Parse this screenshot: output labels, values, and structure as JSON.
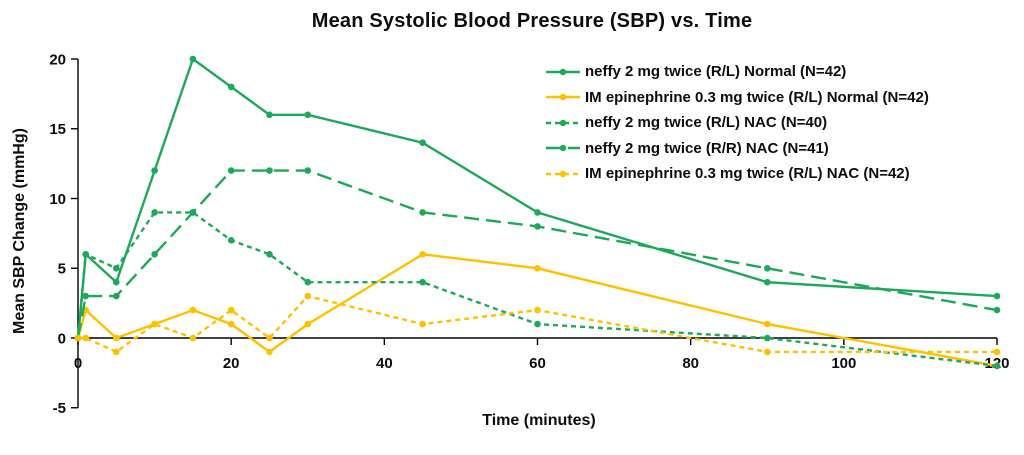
{
  "chart_data": {
    "type": "line",
    "title": "Mean Systolic Blood Pressure (SBP) vs. Time",
    "xlabel": "Time (minutes)",
    "ylabel": "Mean SBP Change (mmHg)",
    "xlim": [
      0,
      120
    ],
    "ylim": [
      -5,
      20
    ],
    "x_ticks": [
      0,
      20,
      40,
      60,
      80,
      100,
      120
    ],
    "y_ticks": [
      20,
      15,
      10,
      5,
      0,
      -5
    ],
    "grid": false,
    "legend_position": "inside-top-right",
    "axis_color": "#000000",
    "x": [
      0,
      1,
      5,
      10,
      15,
      20,
      25,
      30,
      45,
      60,
      90,
      120
    ],
    "series": [
      {
        "name": "neffy 2 mg twice (R/L) Normal (N=42)",
        "color": "#1ea85a",
        "dash": "solid",
        "marker": "circle",
        "values": [
          0,
          6,
          4,
          12,
          20,
          18,
          16,
          16,
          14,
          9,
          4,
          3
        ]
      },
      {
        "name": "IM epinephrine 0.3 mg twice (R/L) Normal (N=42)",
        "color": "#ffc000",
        "dash": "solid",
        "marker": "circle",
        "values": [
          0,
          2,
          0,
          1,
          2,
          1,
          -1,
          1,
          6,
          5,
          1,
          -2
        ]
      },
      {
        "name": "neffy 2 mg twice (R/L) NAC (N=40)",
        "color": "#1ea85a",
        "dash": "short",
        "marker": "circle",
        "values": [
          0,
          6,
          5,
          9,
          9,
          7,
          6,
          4,
          4,
          1,
          0,
          -2
        ]
      },
      {
        "name": "neffy 2 mg twice (R/R) NAC (N=41)",
        "color": "#1ea85a",
        "dash": "long",
        "marker": "circle",
        "values": [
          0,
          3,
          3,
          6,
          9,
          12,
          12,
          12,
          9,
          8,
          5,
          2
        ]
      },
      {
        "name": "IM epinephrine 0.3 mg twice (R/L) NAC (N=42)",
        "color": "#ffc000",
        "dash": "short",
        "marker": "circle",
        "values": [
          0,
          0,
          -1,
          1,
          0,
          2,
          0,
          3,
          1,
          2,
          -1,
          -1
        ]
      }
    ]
  }
}
